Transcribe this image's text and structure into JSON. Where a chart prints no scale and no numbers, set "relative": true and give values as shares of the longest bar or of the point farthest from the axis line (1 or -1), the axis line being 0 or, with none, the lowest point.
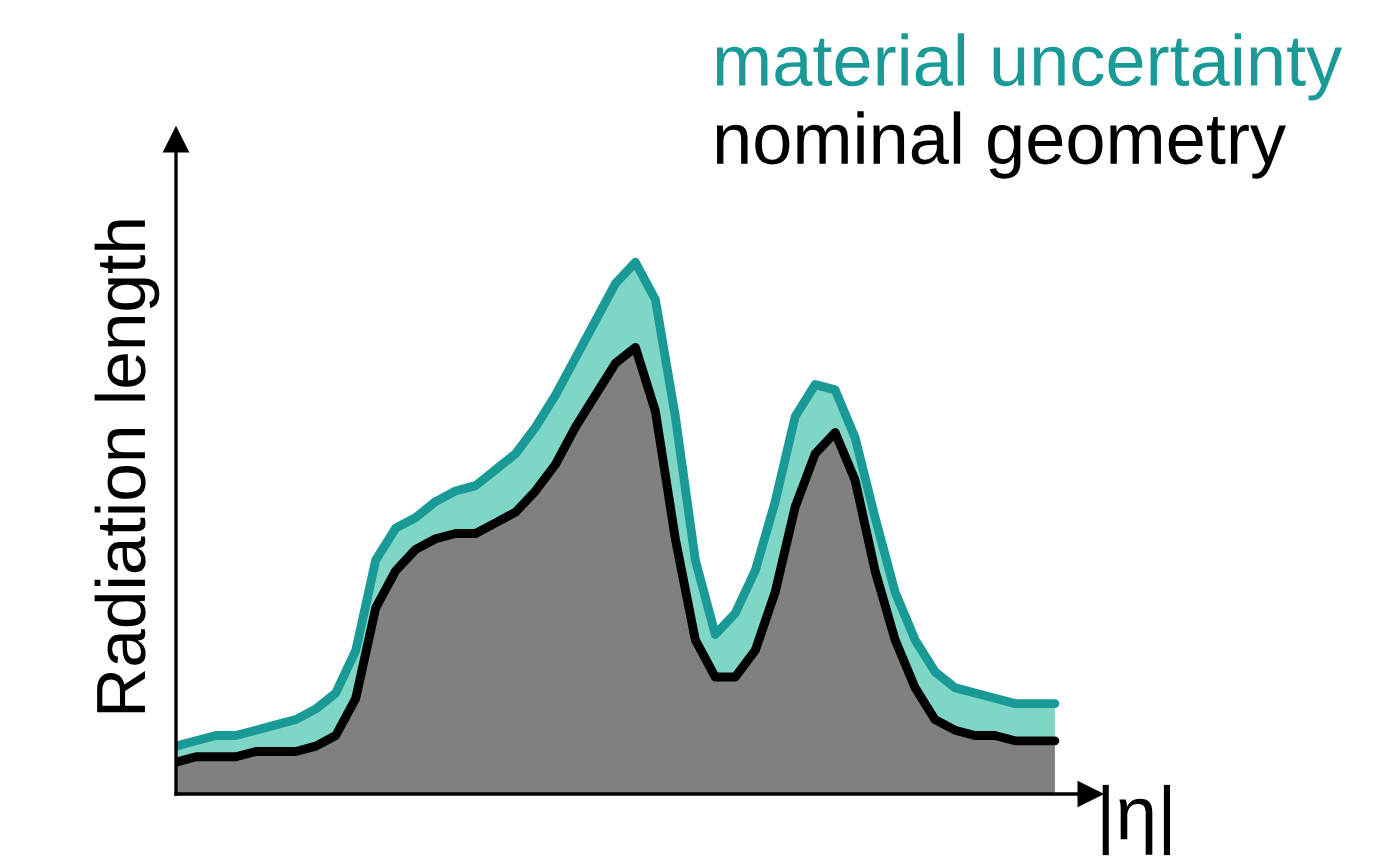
{
  "chart_data": {
    "type": "area",
    "relative": true,
    "xlabel": "|η|",
    "ylabel": "Radiation length",
    "legend": "top right",
    "categories": [
      null,
      null,
      null,
      null,
      null,
      null,
      null,
      null,
      null,
      null,
      null,
      null,
      null,
      null,
      null,
      null,
      null,
      null,
      null,
      null,
      null,
      null,
      null,
      null,
      null,
      null,
      null,
      null,
      null,
      null,
      null,
      null,
      null,
      null,
      null,
      null,
      null,
      null,
      null,
      null,
      null,
      null,
      null,
      null,
      null
    ],
    "series": [
      {
        "name": "material uncertainty",
        "color": "#1a9a96",
        "values": [
          0.09,
          0.1,
          0.11,
          0.11,
          0.12,
          0.13,
          0.14,
          0.16,
          0.19,
          0.27,
          0.44,
          0.5,
          0.52,
          0.55,
          0.57,
          0.58,
          0.61,
          0.64,
          0.69,
          0.75,
          0.82,
          0.89,
          0.96,
          1,
          0.93,
          0.71,
          0.44,
          0.3,
          0.34,
          0.42,
          0.55,
          0.71,
          0.77,
          0.76,
          0.67,
          0.52,
          0.38,
          0.29,
          0.23,
          0.2,
          0.19,
          0.18,
          0.17,
          0.17,
          0.17
        ]
      },
      {
        "name": "nominal geometry",
        "color": "#000000",
        "values": [
          0.06,
          0.07,
          0.07,
          0.07,
          0.08,
          0.08,
          0.08,
          0.09,
          0.11,
          0.18,
          0.35,
          0.42,
          0.46,
          0.48,
          0.49,
          0.49,
          0.51,
          0.53,
          0.57,
          0.62,
          0.69,
          0.75,
          0.81,
          0.84,
          0.72,
          0.48,
          0.29,
          0.22,
          0.22,
          0.27,
          0.38,
          0.54,
          0.64,
          0.68,
          0.59,
          0.42,
          0.29,
          0.2,
          0.14,
          0.12,
          0.11,
          0.11,
          0.1,
          0.1,
          0.1
        ]
      }
    ]
  }
}
